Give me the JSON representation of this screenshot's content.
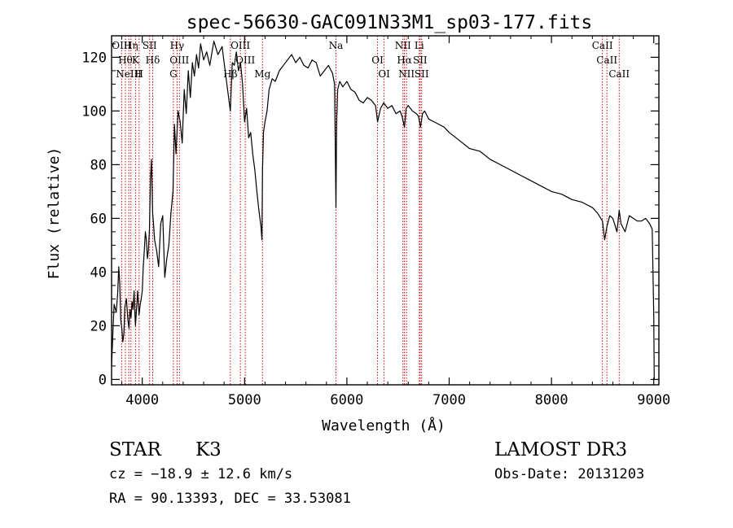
{
  "chart_data": {
    "type": "line",
    "title": "spec-56630-GAC091N33M1_sp03-177.fits",
    "xlabel": "Wavelength (Å)",
    "ylabel": "Flux (relative)",
    "xlim": [
      3700,
      9050
    ],
    "ylim": [
      -2,
      128
    ],
    "xticks": [
      4000,
      5000,
      6000,
      7000,
      8000,
      9000
    ],
    "yticks": [
      0,
      20,
      40,
      60,
      80,
      100,
      120
    ],
    "grid": false,
    "series": [
      {
        "name": "spectrum",
        "x": [
          3700,
          3710,
          3725,
          3745,
          3760,
          3770,
          3780,
          3790,
          3800,
          3810,
          3820,
          3830,
          3845,
          3860,
          3870,
          3880,
          3890,
          3900,
          3910,
          3920,
          3933,
          3945,
          3955,
          3968,
          3980,
          3990,
          4000,
          4010,
          4020,
          4030,
          4040,
          4050,
          4060,
          4070,
          4080,
          4090,
          4101,
          4110,
          4120,
          4140,
          4160,
          4180,
          4200,
          4220,
          4240,
          4260,
          4280,
          4300,
          4315,
          4330,
          4350,
          4370,
          4390,
          4410,
          4430,
          4450,
          4470,
          4490,
          4510,
          4530,
          4550,
          4570,
          4600,
          4630,
          4660,
          4700,
          4740,
          4780,
          4820,
          4861,
          4880,
          4900,
          4920,
          4940,
          4960,
          4980,
          5000,
          5020,
          5040,
          5060,
          5080,
          5100,
          5120,
          5140,
          5160,
          5170,
          5175,
          5185,
          5200,
          5220,
          5240,
          5270,
          5300,
          5340,
          5380,
          5420,
          5460,
          5500,
          5540,
          5580,
          5620,
          5660,
          5700,
          5740,
          5780,
          5820,
          5860,
          5880,
          5893,
          5900,
          5910,
          5930,
          5960,
          6000,
          6040,
          6080,
          6120,
          6160,
          6200,
          6240,
          6280,
          6300,
          6330,
          6360,
          6400,
          6440,
          6480,
          6520,
          6540,
          6563,
          6580,
          6600,
          6640,
          6680,
          6700,
          6720,
          6740,
          6760,
          6800,
          6850,
          6900,
          6950,
          7000,
          7100,
          7200,
          7300,
          7400,
          7500,
          7600,
          7700,
          7800,
          7900,
          8000,
          8100,
          8200,
          8300,
          8400,
          8450,
          8498,
          8520,
          8542,
          8570,
          8600,
          8640,
          8662,
          8680,
          8720,
          8760,
          8800,
          8840,
          8880,
          8920,
          8960,
          8985,
          9000,
          9005
        ],
        "values": [
          5,
          15,
          28,
          25,
          32,
          42,
          36,
          22,
          19,
          14,
          17,
          27,
          30,
          22,
          19,
          26,
          23,
          29,
          26,
          33,
          20,
          27,
          33,
          24,
          28,
          30,
          33,
          42,
          48,
          55,
          52,
          45,
          48,
          56,
          74,
          82,
          62,
          58,
          52,
          48,
          42,
          58,
          61,
          38,
          45,
          50,
          62,
          70,
          95,
          84,
          100,
          96,
          88,
          108,
          99,
          115,
          105,
          118,
          113,
          121,
          116,
          125,
          119,
          122,
          117,
          126,
          121,
          124,
          112,
          100,
          118,
          117,
          122,
          115,
          118,
          110,
          96,
          101,
          90,
          92,
          84,
          78,
          70,
          63,
          57,
          52,
          78,
          92,
          96,
          100,
          108,
          112,
          111,
          115,
          117,
          119,
          121,
          118,
          120,
          117,
          116,
          119,
          118,
          113,
          115,
          117,
          114,
          110,
          64,
          95,
          108,
          111,
          109,
          111,
          108,
          107,
          104,
          103,
          105,
          104,
          102,
          96,
          101,
          103,
          101,
          102,
          99,
          100,
          98,
          94,
          101,
          102,
          100,
          99,
          98,
          94,
          99,
          100,
          97,
          96,
          95,
          94,
          92,
          89,
          86,
          85,
          82,
          80,
          78,
          76,
          74,
          72,
          70,
          69,
          67,
          66,
          64,
          62,
          59,
          52,
          57,
          61,
          60,
          55,
          63,
          58,
          55,
          61,
          60,
          59,
          59,
          60,
          58,
          56,
          24,
          0
        ]
      }
    ],
    "lines": [
      {
        "wl": 3798,
        "label": "OIII"
      },
      {
        "wl": 3835,
        "label": "Hθ"
      },
      {
        "wl": 3869,
        "label": "NeIII"
      },
      {
        "wl": 3889,
        "label": "Hη"
      },
      {
        "wl": 3934,
        "label": "K"
      },
      {
        "wl": 3969,
        "label": "H"
      },
      {
        "wl": 4072,
        "label": "SII"
      },
      {
        "wl": 4102,
        "label": "Hδ"
      },
      {
        "wl": 4304,
        "label": "G"
      },
      {
        "wl": 4340,
        "label": "Hγ"
      },
      {
        "wl": 4363,
        "label": "OIII"
      },
      {
        "wl": 4861,
        "label": "Hβ"
      },
      {
        "wl": 4959,
        "label": "OIII"
      },
      {
        "wl": 5007,
        "label": "OIII"
      },
      {
        "wl": 5175,
        "label": "Mg"
      },
      {
        "wl": 5893,
        "label": "Na"
      },
      {
        "wl": 6300,
        "label": "OI"
      },
      {
        "wl": 6364,
        "label": "OI"
      },
      {
        "wl": 6548,
        "label": "NII"
      },
      {
        "wl": 6563,
        "label": "Hα"
      },
      {
        "wl": 6583,
        "label": "NII"
      },
      {
        "wl": 6708,
        "label": "Li"
      },
      {
        "wl": 6716,
        "label": "SII"
      },
      {
        "wl": 6731,
        "label": "SII"
      },
      {
        "wl": 8498,
        "label": "CaII"
      },
      {
        "wl": 8542,
        "label": "CaII"
      },
      {
        "wl": 8662,
        "label": "CaII"
      }
    ]
  },
  "footer": {
    "object_type": "STAR",
    "subclass": "K3",
    "survey": "LAMOST DR3",
    "redshift": "cz = −18.9 ± 12.6 km/s",
    "obs_date": "Obs-Date: 20131203",
    "coords": "RA =  90.13393, DEC =  33.53081"
  },
  "colors": {
    "spectrum": "#000000",
    "line_markers": "#cc0000",
    "axes": "#000000"
  }
}
